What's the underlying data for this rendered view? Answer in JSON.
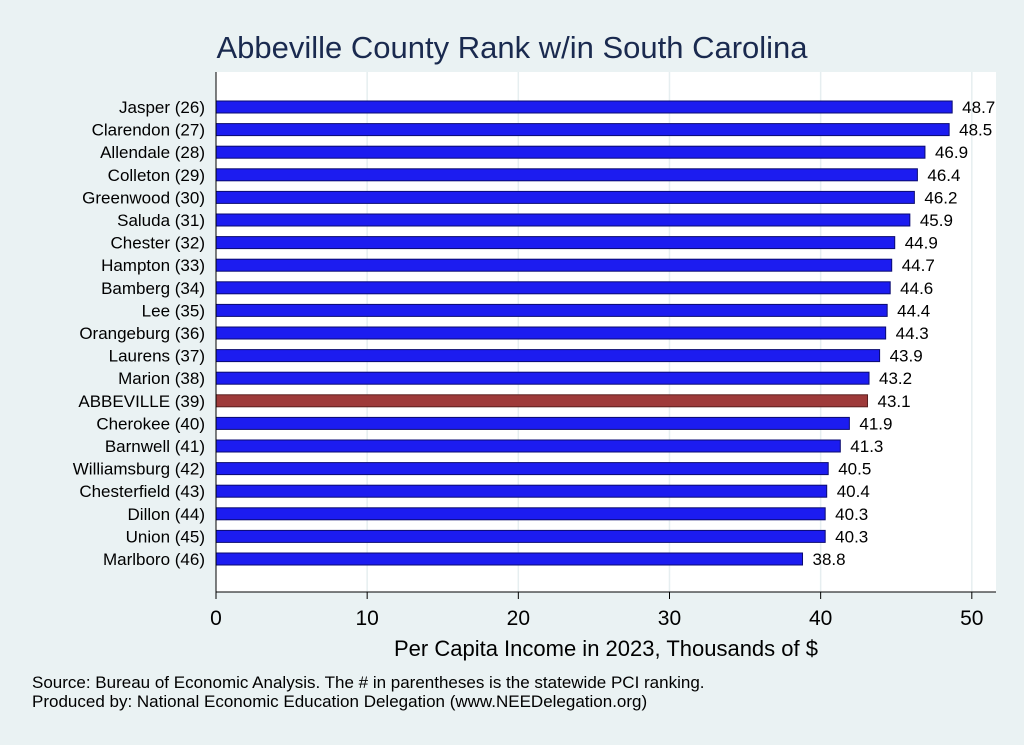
{
  "chart_data": {
    "type": "bar",
    "orientation": "horizontal",
    "title": "Abbeville County Rank w/in South Carolina",
    "xlabel": "Per Capita Income in 2023, Thousands of $",
    "ylabel": "",
    "xlim": [
      0,
      51.6
    ],
    "xticks": [
      "0",
      "10",
      "20",
      "30",
      "40",
      "50"
    ],
    "categories": [
      "Jasper (26)",
      "Clarendon (27)",
      "Allendale (28)",
      "Colleton (29)",
      "Greenwood (30)",
      "Saluda (31)",
      "Chester (32)",
      "Hampton (33)",
      "Bamberg (34)",
      "Lee (35)",
      "Orangeburg (36)",
      "Laurens (37)",
      "Marion (38)",
      "ABBEVILLE (39)",
      "Cherokee (40)",
      "Barnwell (41)",
      "Williamsburg (42)",
      "Chesterfield (43)",
      "Dillon (44)",
      "Union (45)",
      "Marlboro (46)"
    ],
    "values": [
      48.7,
      48.5,
      46.9,
      46.4,
      46.2,
      45.9,
      44.9,
      44.7,
      44.6,
      44.4,
      44.3,
      43.9,
      43.2,
      43.1,
      41.9,
      41.3,
      40.5,
      40.4,
      40.3,
      40.3,
      38.8
    ],
    "value_labels": [
      "48.7",
      "48.5",
      "46.9",
      "46.4",
      "46.2",
      "45.9",
      "44.9",
      "44.7",
      "44.6",
      "44.4",
      "44.3",
      "43.9",
      "43.2",
      "43.1",
      "41.9",
      "41.3",
      "40.5",
      "40.4",
      "40.3",
      "40.3",
      "38.8"
    ],
    "highlight_index": 13,
    "colors": {
      "bar": "#1c1cf0",
      "bar_highlight": "#9e3a3a",
      "background": "#eaf2f3",
      "plot_bg": "#ffffff",
      "title": "#1a2a4f"
    },
    "grid": true
  },
  "footer": {
    "source": "Source: Bureau of Economic Analysis. The # in parentheses is the statewide PCI ranking.",
    "produced_by": "Produced by: National Economic Education Delegation (www.NEEDelegation.org)"
  }
}
